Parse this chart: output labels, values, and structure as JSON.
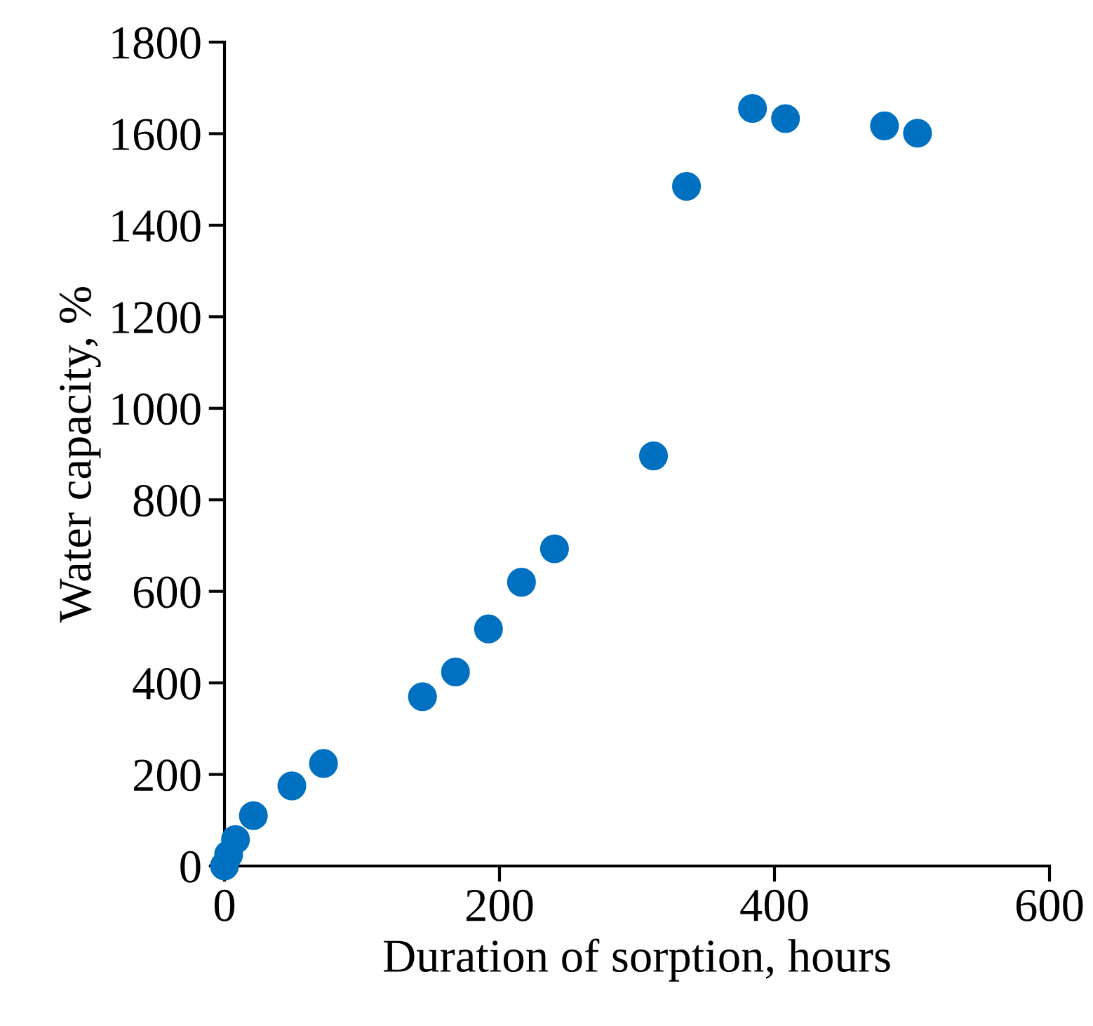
{
  "chart_data": {
    "type": "scatter",
    "xlabel": "Duration of sorption, hours",
    "ylabel": "Water capacity, %",
    "xlim": [
      0,
      600
    ],
    "xticks": [
      0,
      200,
      400,
      600
    ],
    "ylim": [
      0,
      1800
    ],
    "yticks": [
      0,
      200,
      400,
      600,
      800,
      1000,
      1200,
      1400,
      1600,
      1800
    ],
    "grid": false,
    "legend": false,
    "marker": "circle",
    "series": [
      {
        "color": "#0070c0",
        "x": [
          0,
          3,
          8,
          21,
          49,
          72,
          144,
          168,
          192,
          216,
          240,
          312,
          336,
          384,
          408,
          480,
          504
        ],
        "values": [
          0,
          25,
          58,
          110,
          175,
          224,
          370,
          424,
          518,
          620,
          693,
          896,
          1485,
          1655,
          1633,
          1617,
          1601
        ]
      }
    ]
  }
}
